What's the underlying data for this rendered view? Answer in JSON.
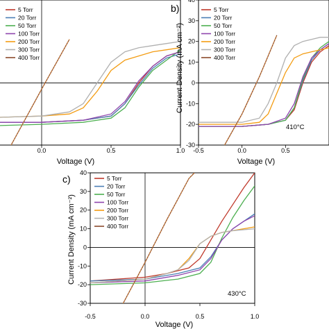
{
  "colors": {
    "5 Torr": "#c0392b",
    "20 Torr": "#4a7fb5",
    "50 Torr": "#4caf50",
    "100 Torr": "#8e44ad",
    "200 Torr": "#f39c12",
    "300 Torr": "#b0b0b0",
    "400 Torr": "#8b4a2b"
  },
  "chart_data": [
    {
      "type": "line",
      "panel": "a",
      "annotation": "410°C",
      "xlabel": "Voltage (V)",
      "ylabel": "",
      "xlim": [
        -0.5,
        1.0
      ],
      "ylim": [
        -30,
        40
      ],
      "xticks": [
        "0.0",
        "0.5",
        "1.0"
      ],
      "yticks": [],
      "legend_position": "top-left",
      "series": [
        {
          "name": "5 Torr",
          "x": [
            -0.5,
            0,
            0.3,
            0.5,
            0.6,
            0.7,
            0.8,
            0.9,
            1.0
          ],
          "y": [
            -19,
            -19,
            -18,
            -16,
            -10,
            0,
            8,
            13,
            15
          ]
        },
        {
          "name": "20 Torr",
          "x": [
            -0.5,
            0,
            0.3,
            0.5,
            0.6,
            0.7,
            0.8,
            0.9,
            1.0
          ],
          "y": [
            -19,
            -19,
            -18,
            -16,
            -10,
            -1,
            7,
            12,
            14
          ]
        },
        {
          "name": "50 Torr",
          "x": [
            -0.5,
            0,
            0.3,
            0.5,
            0.6,
            0.7,
            0.8,
            0.9,
            1.0
          ],
          "y": [
            -21,
            -20,
            -19,
            -17,
            -12,
            -2,
            6,
            11,
            16
          ]
        },
        {
          "name": "100 Torr",
          "x": [
            -0.5,
            0,
            0.3,
            0.5,
            0.6,
            0.7,
            0.8,
            0.9,
            1.0
          ],
          "y": [
            -19,
            -19,
            -18,
            -15,
            -9,
            1,
            8,
            13,
            15
          ]
        },
        {
          "name": "200 Torr",
          "x": [
            -0.5,
            0,
            0.2,
            0.3,
            0.4,
            0.5,
            0.6,
            0.7,
            0.8,
            0.9,
            1.0
          ],
          "y": [
            -17,
            -16,
            -15,
            -12,
            -4,
            6,
            11,
            13,
            15,
            16,
            17
          ]
        },
        {
          "name": "300 Torr",
          "x": [
            -0.5,
            0,
            0.2,
            0.3,
            0.4,
            0.5,
            0.6,
            0.7,
            0.8,
            0.9,
            1.0
          ],
          "y": [
            -17,
            -16,
            -14,
            -10,
            0,
            10,
            15,
            17,
            18,
            19,
            20
          ]
        },
        {
          "name": "400 Torr",
          "x": [
            -0.22,
            0,
            0.1,
            0.2
          ],
          "y": [
            -30,
            -3,
            9,
            21
          ]
        }
      ]
    },
    {
      "type": "line",
      "panel": "b",
      "xlabel": "Voltage (V)",
      "ylabel": "Current Density (mA cm⁻²)",
      "xlim": [
        -0.5,
        1.0
      ],
      "ylim": [
        -30,
        40
      ],
      "xticks": [
        "-0.5",
        "0.0",
        "0.5"
      ],
      "yticks": [
        "-30",
        "-20",
        "-10",
        "0",
        "10",
        "20",
        "30",
        "40"
      ],
      "legend_position": "top-left",
      "series": [
        {
          "name": "5 Torr",
          "x": [
            -0.5,
            0,
            0.3,
            0.5,
            0.6,
            0.7,
            0.8,
            0.9,
            1.0
          ],
          "y": [
            -21,
            -21,
            -20,
            -18,
            -13,
            0,
            10,
            15,
            18
          ]
        },
        {
          "name": "20 Torr",
          "x": [
            -0.5,
            0,
            0.3,
            0.5,
            0.6,
            0.7,
            0.8,
            0.9,
            1.0
          ],
          "y": [
            -21,
            -21,
            -20,
            -18,
            -12,
            1,
            11,
            16,
            19
          ]
        },
        {
          "name": "50 Torr",
          "x": [
            -0.5,
            0,
            0.3,
            0.5,
            0.6,
            0.7,
            0.8,
            0.9,
            1.0
          ],
          "y": [
            -21,
            -21,
            -20,
            -18,
            -12,
            2,
            12,
            17,
            20
          ]
        },
        {
          "name": "100 Torr",
          "x": [
            -0.5,
            0,
            0.3,
            0.5,
            0.6,
            0.7,
            0.8,
            0.9,
            1.0
          ],
          "y": [
            -21,
            -21,
            -20,
            -17,
            -10,
            3,
            12,
            16,
            19
          ]
        },
        {
          "name": "200 Torr",
          "x": [
            -0.5,
            0,
            0.2,
            0.3,
            0.4,
            0.5,
            0.6,
            0.7,
            0.8,
            0.9,
            1.0
          ],
          "y": [
            -20,
            -20,
            -19,
            -15,
            -5,
            5,
            12,
            14,
            15,
            16,
            17
          ]
        },
        {
          "name": "300 Torr",
          "x": [
            -0.5,
            0,
            0.2,
            0.3,
            0.4,
            0.5,
            0.6,
            0.7,
            0.8,
            0.9,
            1.0
          ],
          "y": [
            -19,
            -19,
            -17,
            -10,
            0,
            12,
            18,
            20,
            21,
            22,
            22
          ]
        },
        {
          "name": "400 Torr",
          "x": [
            -0.2,
            0,
            0.1,
            0.2,
            0.3,
            0.4
          ],
          "y": [
            -30,
            -15,
            -6,
            3,
            13,
            23
          ]
        }
      ]
    },
    {
      "type": "line",
      "panel": "c",
      "annotation": "430°C",
      "xlabel": "Voltage (V)",
      "ylabel": "Current Density (mA cm⁻²)",
      "xlim": [
        -0.5,
        1.0
      ],
      "ylim": [
        -30,
        40
      ],
      "xticks": [
        "-0.5",
        "0.0",
        "0.5",
        "1.0"
      ],
      "yticks": [
        "-30",
        "-20",
        "-10",
        "0",
        "10",
        "20",
        "30",
        "40"
      ],
      "legend_position": "top-left",
      "series": [
        {
          "name": "5 Torr",
          "x": [
            -0.5,
            0,
            0.2,
            0.4,
            0.5,
            0.6,
            0.7,
            0.8,
            0.9,
            1.0
          ],
          "y": [
            -18,
            -16,
            -14,
            -11,
            -6,
            4,
            14,
            23,
            32,
            40
          ]
        },
        {
          "name": "20 Torr",
          "x": [
            -0.5,
            0,
            0.3,
            0.5,
            0.6,
            0.7,
            0.8,
            0.9,
            1.0
          ],
          "y": [
            -18,
            -17,
            -14,
            -11,
            -5,
            4,
            10,
            14,
            18
          ]
        },
        {
          "name": "50 Torr",
          "x": [
            -0.5,
            0,
            0.3,
            0.5,
            0.6,
            0.7,
            0.8,
            0.9,
            1.0
          ],
          "y": [
            -20,
            -19,
            -17,
            -14,
            -8,
            5,
            16,
            25,
            33
          ]
        },
        {
          "name": "100 Torr",
          "x": [
            -0.5,
            0,
            0.3,
            0.5,
            0.6,
            0.7,
            0.8,
            0.9,
            1.0
          ],
          "y": [
            -19,
            -18,
            -15,
            -12,
            -6,
            4,
            10,
            14,
            17
          ]
        },
        {
          "name": "200 Torr",
          "x": [
            -0.5,
            0,
            0.2,
            0.3,
            0.4,
            0.5,
            0.6,
            0.7,
            0.8,
            1.0
          ],
          "y": [
            -19,
            -17,
            -14,
            -12,
            -6,
            2,
            6,
            8,
            9,
            11
          ]
        },
        {
          "name": "300 Torr",
          "x": [
            -0.5,
            0,
            0.2,
            0.3,
            0.4,
            0.5,
            0.6,
            0.7,
            0.8,
            1.0
          ],
          "y": [
            -19,
            -17,
            -14,
            -12,
            -7,
            2,
            6,
            8,
            9,
            10
          ]
        },
        {
          "name": "400 Torr",
          "x": [
            -0.2,
            0,
            0.2,
            0.4,
            0.45
          ],
          "y": [
            -30,
            -8,
            15,
            37,
            40
          ]
        }
      ]
    }
  ],
  "panels": {
    "a": {
      "annotation": "410°C",
      "xlabel": "Voltage (V)",
      "xticks": [
        "0.0",
        "0.5",
        "1.0"
      ]
    },
    "b": {
      "letter": "b)",
      "xlabel": "Voltage (V)",
      "ylabel": "Current Density (mA cm⁻²)",
      "xticks": [
        "-0.5",
        "0.0",
        "0.5"
      ],
      "yticks": [
        "-30",
        "-20",
        "-10",
        "0",
        "10",
        "20",
        "30",
        "40"
      ]
    },
    "c": {
      "letter": "c)",
      "annotation": "430°C",
      "xlabel": "Voltage (V)",
      "ylabel": "Current Density (mA cm⁻²)",
      "xticks": [
        "-0.5",
        "0.0",
        "0.5",
        "1.0"
      ],
      "yticks": [
        "-30",
        "-20",
        "-10",
        "0",
        "10",
        "20",
        "30",
        "40"
      ]
    }
  }
}
